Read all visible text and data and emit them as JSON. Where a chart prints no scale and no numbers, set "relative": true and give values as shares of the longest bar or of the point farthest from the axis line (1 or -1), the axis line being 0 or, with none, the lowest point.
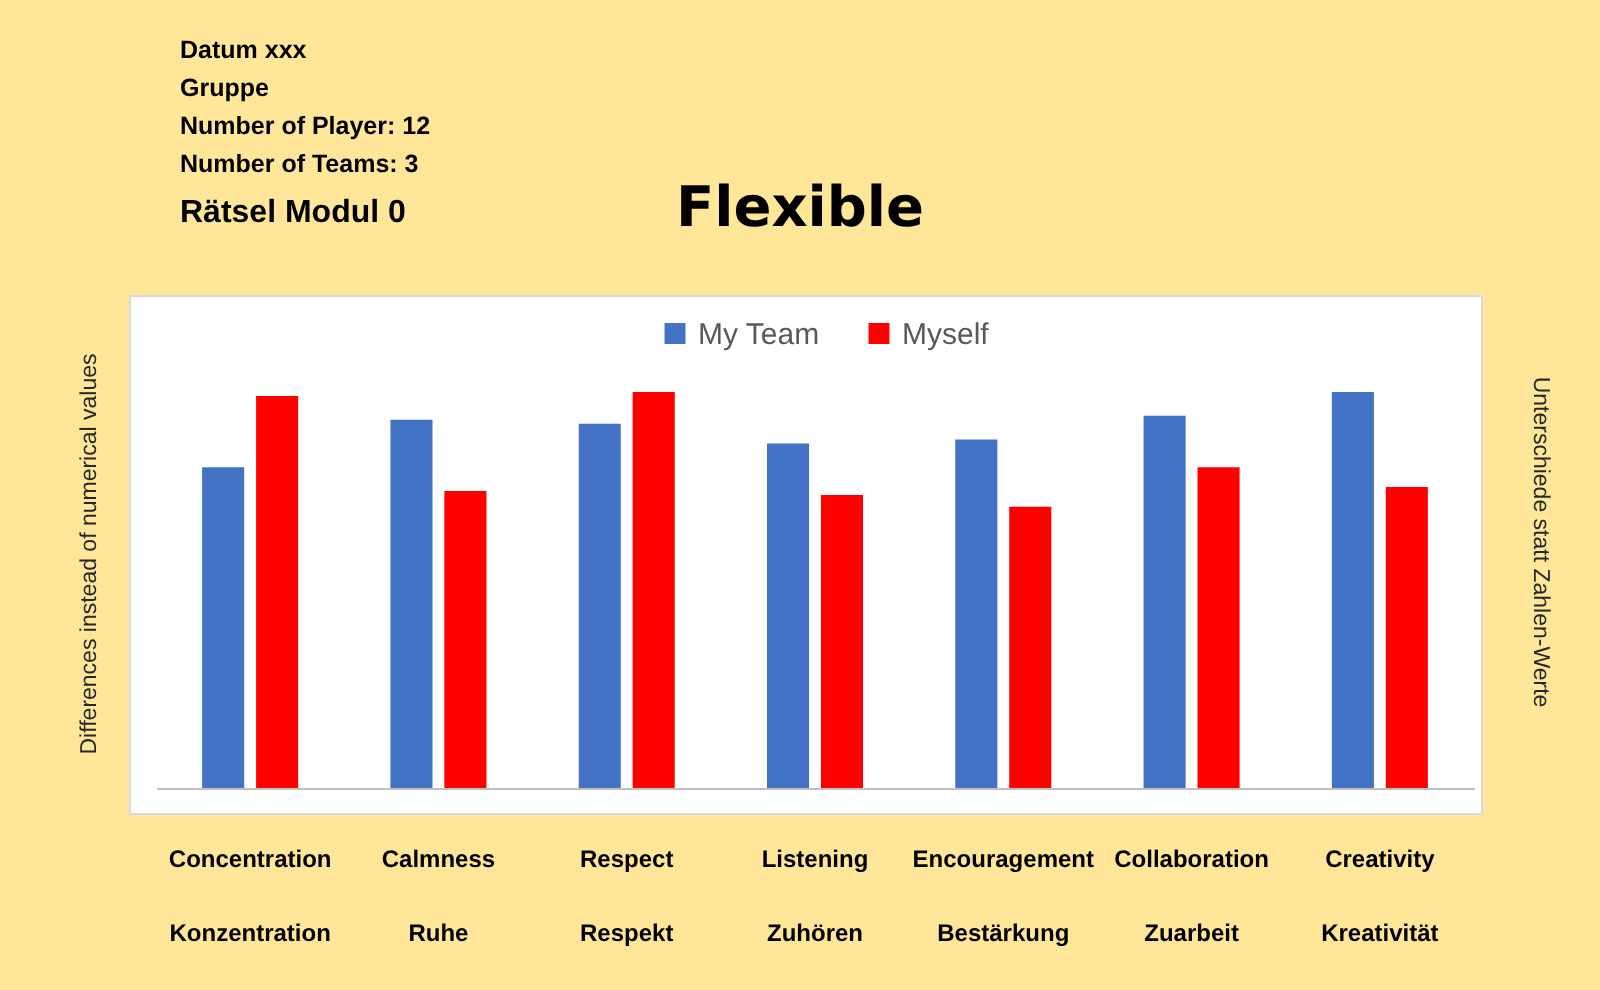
{
  "chart_data": {
    "type": "bar",
    "title": "Flexible",
    "ylabel": "Differences instead of numerical values",
    "y2label": "Unterschiede statt Zahlen-Werte",
    "annotations": [
      "Datum xxx",
      "Gruppe",
      "Number of Player: 12",
      "Number of Teams: 3",
      "Rätsel Modul 0"
    ],
    "categories": [
      "Concentration\nKonzentration",
      "Calmness\nRuhe",
      "Respect\nRespekt",
      "Listening\nZuhören",
      "Encouragement\nBestärkung",
      "Collaboration\nZuarbeit",
      "Creativity\nKreativität"
    ],
    "relative": true,
    "legend": "top",
    "series": [
      {
        "name": "My Team",
        "color": "#4472c4",
        "values": [
          0.81,
          0.93,
          0.92,
          0.87,
          0.88,
          0.94,
          1.0
        ]
      },
      {
        "name": "Myself",
        "color": "#ff0000",
        "values": [
          0.99,
          0.75,
          1.0,
          0.74,
          0.71,
          0.81,
          0.76
        ]
      }
    ]
  }
}
